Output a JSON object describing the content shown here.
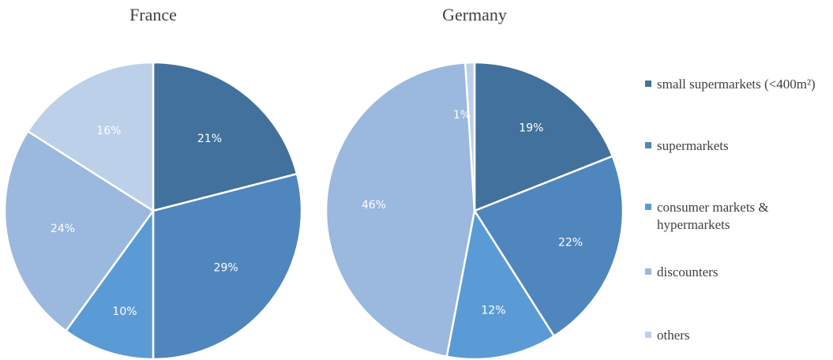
{
  "chart_data": [
    {
      "type": "pie",
      "title": "France",
      "categories": [
        "small supermarkets (<400m²)",
        "supermarkets",
        "consumer markets & hypermarkets",
        "discounters",
        "others"
      ],
      "values": [
        21,
        29,
        10,
        24,
        16
      ],
      "labels": [
        "21%",
        "29%",
        "10%",
        "24%",
        "16%"
      ]
    },
    {
      "type": "pie",
      "title": "Germany",
      "categories": [
        "small supermarkets (<400m²)",
        "supermarkets",
        "consumer markets & hypermarkets",
        "discounters",
        "others"
      ],
      "values": [
        19,
        22,
        12,
        46,
        1
      ],
      "labels": [
        "19%",
        "22%",
        "12%",
        "46%",
        "1%"
      ]
    }
  ],
  "legend": {
    "placement": "right",
    "items": [
      {
        "lines": [
          "small supermarkets (<400m²)"
        ],
        "color": "#41719C"
      },
      {
        "lines": [
          "supermarkets"
        ],
        "color": "#4F86BD"
      },
      {
        "lines": [
          "consumer markets &",
          "hypermarkets"
        ],
        "color": "#5B9BD5"
      },
      {
        "lines": [
          "discounters"
        ],
        "color": "#9BB8DE"
      },
      {
        "lines": [
          "others"
        ],
        "color": "#BDD0EA"
      }
    ]
  },
  "colors": [
    "#41719C",
    "#4F86BD",
    "#5B9BD5",
    "#9BB8DE",
    "#BDD0EA"
  ]
}
